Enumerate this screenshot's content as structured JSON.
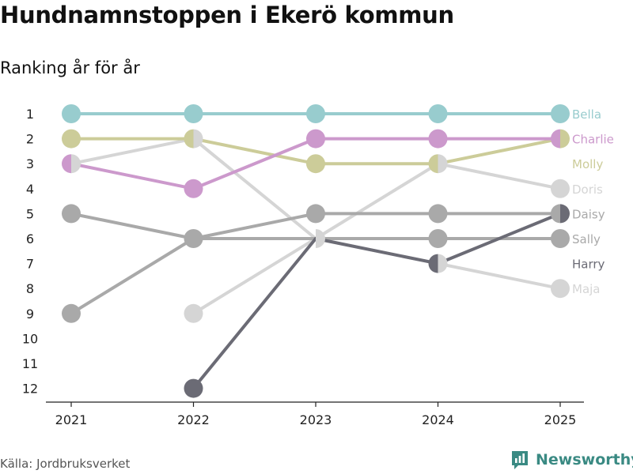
{
  "header": {
    "title": "Hundnamnstoppen i Ekerö kommun",
    "subtitle": "Ranking år för år"
  },
  "footer": {
    "source": "Källa: Jordbruksverket",
    "brand": "Newsworthy"
  },
  "colors": {
    "Bella": "#98ccce",
    "Charlie": "#cc99cc",
    "Molly": "#cccc99",
    "Doris": "#d5d5d5",
    "Daisy": "#a9a9a9",
    "Sally": "#a9a9a9",
    "Harry": "#6b6b75",
    "Maja": "#d5d5d5",
    "axis": "#222222",
    "brand": "#3a8a83"
  },
  "chart_data": {
    "type": "line",
    "subtype": "bump",
    "title": "Hundnamnstoppen i Ekerö kommun",
    "subtitle": "Ranking år för år",
    "x": [
      "2021",
      "2022",
      "2023",
      "2024",
      "2025"
    ],
    "y_ticks": [
      1,
      2,
      3,
      4,
      5,
      6,
      7,
      8,
      9,
      10,
      11,
      12
    ],
    "ylim": [
      12,
      1
    ],
    "y_inverted": true,
    "series": [
      {
        "name": "Bella",
        "values": [
          1,
          1,
          1,
          1,
          1
        ]
      },
      {
        "name": "Charlie",
        "values": [
          3,
          4,
          2,
          2,
          2
        ]
      },
      {
        "name": "Molly",
        "values": [
          2,
          2,
          3,
          3,
          2
        ]
      },
      {
        "name": "Doris",
        "values": [
          3,
          2,
          6,
          3,
          4
        ]
      },
      {
        "name": "Daisy",
        "values": [
          9,
          6,
          5,
          5,
          5
        ]
      },
      {
        "name": "Sally",
        "values": [
          5,
          6,
          6,
          6,
          6
        ]
      },
      {
        "name": "Harry",
        "values": [
          null,
          12,
          6,
          7,
          5
        ]
      },
      {
        "name": "Maja",
        "values": [
          null,
          9,
          6,
          7,
          8
        ]
      }
    ],
    "label_order": [
      "Bella",
      "Charlie",
      "Molly",
      "Doris",
      "Daisy",
      "Sally",
      "Harry",
      "Maja"
    ]
  }
}
